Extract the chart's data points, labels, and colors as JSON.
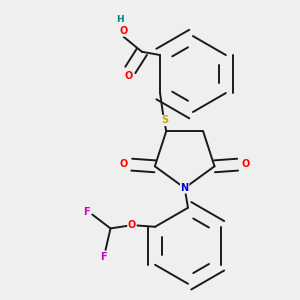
{
  "background_color": "#efefef",
  "bond_color": "#1a1a1a",
  "atom_colors": {
    "O": "#ff0000",
    "N": "#0000cc",
    "S": "#ccaa00",
    "F": "#cc00cc",
    "H": "#008080",
    "C": "#1a1a1a"
  }
}
